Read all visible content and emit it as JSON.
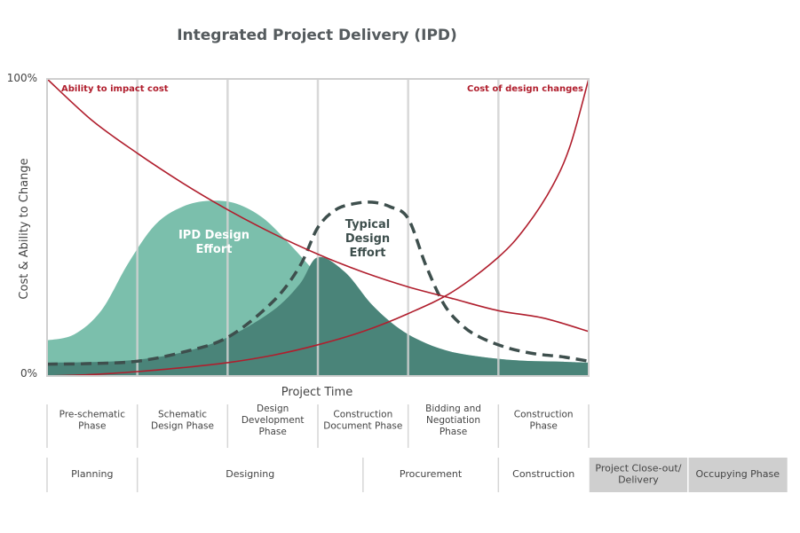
{
  "chart_data": {
    "type": "area",
    "title": "Integrated Project Delivery (IPD)",
    "xlabel": "Project Time",
    "ylabel": "Cost & Ability to Change",
    "y_ticks": [
      "0%",
      "100%"
    ],
    "ylim": [
      0,
      100
    ],
    "xlim": [
      0,
      6
    ],
    "grid": true,
    "phases": [
      {
        "label": "Pre-schematic\nPhase"
      },
      {
        "label": "Schematic\nDesign Phase"
      },
      {
        "label": "Design\nDevelopment\nPhase"
      },
      {
        "label": "Construction\nDocument Phase"
      },
      {
        "label": "Bidding and\nNegotiation\nPhase"
      },
      {
        "label": "Construction\nPhase"
      }
    ],
    "bands": [
      {
        "label": "Planning",
        "start": 0,
        "end": 1,
        "shaded": false
      },
      {
        "label": "Designing",
        "start": 1,
        "end": 3.5,
        "shaded": false
      },
      {
        "label": "Procurement",
        "start": 3.5,
        "end": 5,
        "shaded": false
      },
      {
        "label": "Construction",
        "start": 5,
        "end": 6,
        "shaded": false
      },
      {
        "label": "Project Close-out/\nDelivery",
        "start": 6,
        "end": 7.1,
        "shaded": true
      },
      {
        "label": "Occupying Phase",
        "start": 7.1,
        "end": 8.2,
        "shaded": true
      }
    ],
    "series": [
      {
        "name": "IPD Design\nEffort",
        "style": "area",
        "color": "#7bbfac",
        "x": [
          0,
          0.3,
          0.6,
          0.9,
          1.2,
          1.5,
          1.8,
          2.1,
          2.4,
          2.7,
          3.0,
          3.3,
          3.6,
          3.9,
          4.2,
          4.5,
          4.8,
          5.1,
          5.4,
          5.7,
          6.0
        ],
        "y": [
          12,
          14,
          22,
          38,
          51,
          57,
          59,
          58,
          53,
          44,
          34,
          25,
          18,
          13,
          10,
          8,
          6.5,
          5.5,
          5,
          4.8,
          4.5
        ]
      },
      {
        "name": "",
        "style": "area",
        "color": "#4a8479",
        "x": [
          0,
          0.5,
          1.0,
          1.5,
          2.0,
          2.5,
          2.8,
          3.0,
          3.3,
          3.6,
          3.9,
          4.2,
          4.5,
          4.8,
          5.1,
          5.4,
          5.7,
          6.0
        ],
        "y": [
          4.5,
          4.7,
          5.5,
          8,
          13,
          22,
          31,
          40,
          35,
          24,
          16,
          11,
          8,
          6.5,
          5.5,
          5,
          4.8,
          4.5
        ]
      },
      {
        "name": "Typical\nDesign\nEffort",
        "style": "dashed",
        "color": "#3e4f4d",
        "x": [
          0,
          0.5,
          1.0,
          1.5,
          2.0,
          2.5,
          2.8,
          3.0,
          3.2,
          3.4,
          3.6,
          3.8,
          4.0,
          4.2,
          4.4,
          4.6,
          4.8,
          5.1,
          5.4,
          5.7,
          6.0
        ],
        "y": [
          4,
          4.2,
          5,
          8,
          13,
          25,
          37,
          50,
          56,
          58,
          58.5,
          57,
          53,
          37,
          24,
          17,
          13,
          9.5,
          7.5,
          6.5,
          5
        ]
      },
      {
        "name": "Ability to impact cost",
        "style": "line",
        "color": "#b01e2d",
        "x": [
          0,
          0.5,
          1.0,
          1.5,
          2.0,
          2.5,
          3.0,
          3.5,
          4.0,
          4.5,
          5.0,
          5.5,
          6.0
        ],
        "y": [
          100,
          86,
          75,
          65,
          56,
          48,
          41,
          35,
          30,
          26,
          22,
          19.5,
          15
        ]
      },
      {
        "name": "Cost of design changes",
        "style": "line",
        "color": "#b01e2d",
        "x": [
          0,
          0.5,
          1.0,
          1.5,
          2.0,
          2.5,
          3.0,
          3.5,
          4.0,
          4.5,
          5.0,
          5.3,
          5.6,
          5.8,
          6.0
        ],
        "y": [
          0,
          0.5,
          1.5,
          2.8,
          4.5,
          7,
          10.5,
          15,
          21,
          28.5,
          40,
          50,
          64,
          78,
          100
        ]
      }
    ]
  }
}
